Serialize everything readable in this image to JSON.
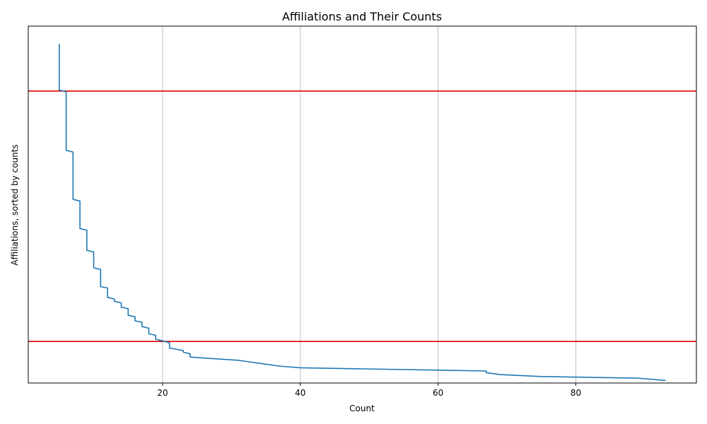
{
  "chart_data": {
    "type": "line",
    "title": "Affiliations and Their Counts",
    "xlabel": "Count",
    "ylabel": "Affiliations, sorted by counts",
    "xlim": [
      0.5,
      97.5
    ],
    "ylim": [
      -0.1,
      1.0
    ],
    "x_ticks": [
      20,
      40,
      60,
      80
    ],
    "x_tick_labels": [
      "20",
      "40",
      "60",
      "80"
    ],
    "grid": "vertical",
    "series": [
      {
        "color": "#1f77b4",
        "x": [
          5,
          5,
          6,
          6,
          7,
          7,
          8,
          8,
          9,
          9,
          10,
          10,
          11,
          11,
          12,
          12,
          13,
          13,
          14,
          14,
          15,
          15,
          16,
          16,
          17,
          17,
          18,
          18,
          19,
          19,
          20,
          21,
          21,
          22,
          23,
          23,
          24,
          24,
          31,
          37,
          40,
          67,
          67,
          69,
          75,
          89,
          93
        ],
        "y": [
          0.945,
          0.803,
          0.798,
          0.617,
          0.612,
          0.466,
          0.461,
          0.376,
          0.371,
          0.309,
          0.304,
          0.255,
          0.25,
          0.197,
          0.193,
          0.164,
          0.159,
          0.152,
          0.147,
          0.134,
          0.129,
          0.109,
          0.104,
          0.092,
          0.087,
          0.074,
          0.069,
          0.052,
          0.047,
          0.035,
          0.03,
          0.024,
          0.008,
          0.004,
          0.0,
          -0.005,
          -0.01,
          -0.02,
          -0.03,
          -0.048,
          -0.053,
          -0.063,
          -0.068,
          -0.074,
          -0.08,
          -0.085,
          -0.092
        ]
      }
    ],
    "hlines": [
      {
        "y": 0.8,
        "color": "#e00000"
      },
      {
        "y": 0.028,
        "color": "#e00000"
      }
    ]
  }
}
